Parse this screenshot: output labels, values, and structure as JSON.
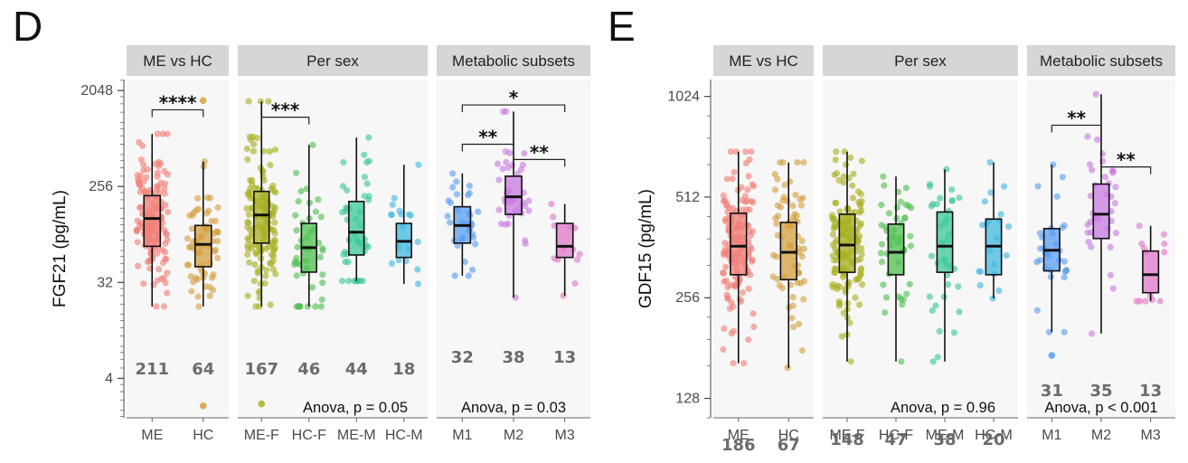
{
  "chart_data": [
    {
      "type": "box",
      "panel_letter": "D",
      "ylabel": "FGF21 (pg/mL)",
      "y_scale": "log2",
      "ylim": [
        1.7,
        2600
      ],
      "y_ticks": [
        4,
        32,
        256,
        2048
      ],
      "y_tick_labels": [
        "4",
        "32",
        "256",
        "2048"
      ],
      "facets": [
        {
          "strip": "ME vs HC",
          "categories": [
            "ME",
            "HC"
          ],
          "colors": [
            "#f08078",
            "#d4a040"
          ],
          "counts": [
            "211",
            "64"
          ],
          "boxes": [
            {
              "q1": 70,
              "median": 128,
              "q3": 210,
              "whisker_low": 19,
              "whisker_high": 800
            },
            {
              "q1": 45,
              "median": 73,
              "q3": 110,
              "whisker_low": 19,
              "whisker_high": 440
            }
          ],
          "outliers": [
            [
              1,
              1650
            ],
            [
              1,
              2.2
            ]
          ],
          "significance": [
            {
              "from": 0,
              "to": 1,
              "label": "****",
              "y": 1350
            }
          ],
          "anova": ""
        },
        {
          "strip": "Per sex",
          "categories": [
            "ME-F",
            "HC-F",
            "ME-M",
            "HC-M"
          ],
          "colors": [
            "#a8b020",
            "#50c050",
            "#3cc896",
            "#40b8e0"
          ],
          "counts": [
            "167",
            "46",
            "44",
            "18"
          ],
          "boxes": [
            {
              "q1": 75,
              "median": 138,
              "q3": 230,
              "whisker_low": 19,
              "whisker_high": 1620
            },
            {
              "q1": 40,
              "median": 68,
              "q3": 115,
              "whisker_low": 19,
              "whisker_high": 630
            },
            {
              "q1": 58,
              "median": 95,
              "q3": 185,
              "whisker_low": 33,
              "whisker_high": 740
            },
            {
              "q1": 55,
              "median": 78,
              "q3": 115,
              "whisker_low": 31,
              "whisker_high": 410
            }
          ],
          "outliers": [
            [
              0,
              2.3
            ]
          ],
          "significance": [
            {
              "from": 0,
              "to": 1,
              "label": "***",
              "y": 1150
            }
          ],
          "anova": "Anova, p = 0.05"
        },
        {
          "strip": "Metabolic subsets",
          "categories": [
            "M1",
            "M2",
            "M3"
          ],
          "colors": [
            "#5a9ef0",
            "#c87ae0",
            "#e078c8"
          ],
          "counts": [
            "32",
            "38",
            "13"
          ],
          "boxes": [
            {
              "q1": 75,
              "median": 110,
              "q3": 165,
              "whisker_low": 37,
              "whisker_high": 340
            },
            {
              "q1": 140,
              "median": 205,
              "q3": 320,
              "whisker_low": 23,
              "whisker_high": 1300
            },
            {
              "q1": 55,
              "median": 70,
              "q3": 115,
              "whisker_low": 24,
              "whisker_high": 175
            }
          ],
          "outliers": [],
          "significance": [
            {
              "from": 0,
              "to": 2,
              "label": "*",
              "y": 1500
            },
            {
              "from": 0,
              "to": 1,
              "label": "**",
              "y": 640
            },
            {
              "from": 1,
              "to": 2,
              "label": "**",
              "y": 460
            }
          ],
          "anova": "Anova, p = 0.03"
        }
      ]
    },
    {
      "type": "box",
      "panel_letter": "E",
      "ylabel": "GDF15 (pg/mL)",
      "y_scale": "log2",
      "ylim": [
        112,
        1150
      ],
      "y_ticks": [
        128,
        256,
        512,
        1024
      ],
      "y_tick_labels": [
        "128",
        "256",
        "512",
        "1024"
      ],
      "facets": [
        {
          "strip": "ME vs HC",
          "categories": [
            "ME",
            "HC"
          ],
          "colors": [
            "#f08078",
            "#d4a040"
          ],
          "counts": [
            "186",
            "67"
          ],
          "boxes": [
            {
              "q1": 300,
              "median": 365,
              "q3": 458,
              "whisker_low": 163,
              "whisker_high": 700
            },
            {
              "q1": 290,
              "median": 350,
              "q3": 430,
              "whisker_low": 158,
              "whisker_high": 650
            }
          ],
          "outliers": [],
          "significance": [],
          "anova": ""
        },
        {
          "strip": "Per sex",
          "categories": [
            "ME-F",
            "HC-F",
            "ME-M",
            "HC-M"
          ],
          "colors": [
            "#a8b020",
            "#50c050",
            "#3cc896",
            "#40b8e0"
          ],
          "counts": [
            "148",
            "47",
            "38",
            "20"
          ],
          "boxes": [
            {
              "q1": 305,
              "median": 368,
              "q3": 455,
              "whisker_low": 165,
              "whisker_high": 700
            },
            {
              "q1": 300,
              "median": 350,
              "q3": 425,
              "whisker_low": 165,
              "whisker_high": 590
            },
            {
              "q1": 305,
              "median": 365,
              "q3": 462,
              "whisker_low": 165,
              "whisker_high": 620
            },
            {
              "q1": 300,
              "median": 365,
              "q3": 440,
              "whisker_low": 255,
              "whisker_high": 650
            }
          ],
          "outliers": [],
          "significance": [],
          "anova": "Anova, p = 0.96"
        },
        {
          "strip": "Metabolic subsets",
          "categories": [
            "M1",
            "M2",
            "M3"
          ],
          "colors": [
            "#5a9ef0",
            "#c87ae0",
            "#e078c8"
          ],
          "counts": [
            "31",
            "35",
            "13"
          ],
          "boxes": [
            {
              "q1": 308,
              "median": 355,
              "q3": 412,
              "whisker_low": 202,
              "whisker_high": 640
            },
            {
              "q1": 385,
              "median": 455,
              "q3": 560,
              "whisker_low": 200,
              "whisker_high": 1040
            },
            {
              "q1": 265,
              "median": 300,
              "q3": 353,
              "whisker_low": 250,
              "whisker_high": 420
            }
          ],
          "outliers": [
            [
              0,
              172
            ]
          ],
          "significance": [
            {
              "from": 0,
              "to": 1,
              "label": "**",
              "y": 840
            },
            {
              "from": 1,
              "to": 2,
              "label": "**",
              "y": 630
            }
          ],
          "anova": "Anova, p < 0.001"
        }
      ]
    }
  ]
}
